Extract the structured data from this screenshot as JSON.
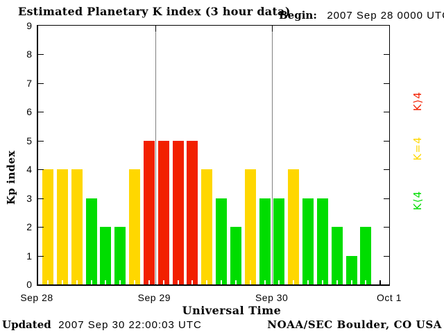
{
  "header": {
    "begin_label": "Begin:",
    "begin_value": "2007 Sep 28 0000 UTC"
  },
  "chart_data": {
    "type": "bar",
    "title": "Estimated Planetary K index (3 hour data)",
    "xlabel": "Universal Time",
    "ylabel": "Kp index",
    "ylim": [
      0,
      9
    ],
    "yticks": [
      0,
      1,
      2,
      3,
      4,
      5,
      6,
      7,
      8,
      9
    ],
    "xticks": [
      "Sep 28",
      "Sep 29",
      "Sep 30",
      "Oct 1"
    ],
    "days": 3,
    "slots_per_day": 8,
    "interval_hours": 3,
    "values": [
      4,
      4,
      4,
      3,
      2,
      2,
      4,
      5,
      5,
      5,
      5,
      4,
      3,
      2,
      4,
      3,
      3,
      4,
      3,
      3,
      2,
      1,
      2
    ],
    "color_rule": {
      "k_below_4": "#00DD00",
      "k_equal_4": "#FFD700",
      "k_above_4": "#F22000"
    },
    "legend": [
      {
        "label": "K⟩4",
        "color": "#F22000"
      },
      {
        "label": "K=4",
        "color": "#FFD700"
      },
      {
        "label": "K⟨4",
        "color": "#00DD00"
      }
    ],
    "gridlines": "dotted vertical lines at day boundaries"
  },
  "footer": {
    "updated_label": "Updated",
    "updated_value": "2007 Sep 30 22:00:03 UTC",
    "source": "NOAA/SEC Boulder, CO USA"
  }
}
